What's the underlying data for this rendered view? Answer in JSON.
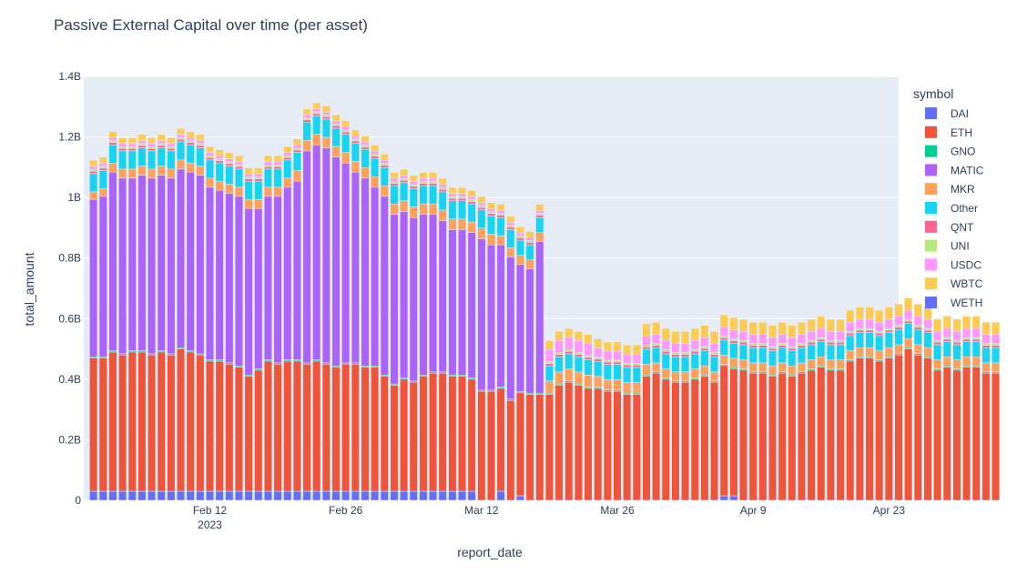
{
  "chart_data": {
    "type": "bar",
    "stacked": true,
    "title": "Passive External Capital over time (per asset)",
    "xlabel": "report_date",
    "ylabel": "total_amount",
    "ylim": [
      0,
      1400000000
    ],
    "yticks": [
      {
        "value": 0,
        "label": "0"
      },
      {
        "value": 200000000,
        "label": "0.2B"
      },
      {
        "value": 400000000,
        "label": "0.4B"
      },
      {
        "value": 600000000,
        "label": "0.6B"
      },
      {
        "value": 800000000,
        "label": "0.8B"
      },
      {
        "value": 1000000000,
        "label": "1B"
      },
      {
        "value": 1200000000,
        "label": "1.2B"
      },
      {
        "value": 1400000000,
        "label": "1.4B"
      }
    ],
    "xticks": [
      {
        "date": "2023-02-12",
        "label": "Feb 12",
        "sublabel": "2023"
      },
      {
        "date": "2023-02-26",
        "label": "Feb 26"
      },
      {
        "date": "2023-03-12",
        "label": "Mar 12"
      },
      {
        "date": "2023-03-26",
        "label": "Mar 26"
      },
      {
        "date": "2023-04-09",
        "label": "Apr 9"
      },
      {
        "date": "2023-04-23",
        "label": "Apr 23"
      }
    ],
    "xrange": [
      "2023-01-30",
      "2023-04-24"
    ],
    "grid": true,
    "legend_title": "symbol",
    "legend_position": "right",
    "start_date": "2023-01-31",
    "series": [
      {
        "name": "DAI",
        "color": "#636efa",
        "values": [
          0.03,
          0.03,
          0.03,
          0.03,
          0.03,
          0.03,
          0.03,
          0.03,
          0.03,
          0.03,
          0.03,
          0.03,
          0.03,
          0.03,
          0.03,
          0.03,
          0.03,
          0.03,
          0.03,
          0.03,
          0.03,
          0.03,
          0.03,
          0.03,
          0.03,
          0.03,
          0.03,
          0.03,
          0.03,
          0.03,
          0.03,
          0.03,
          0.03,
          0.03,
          0.03,
          0.03,
          0.03,
          0.03,
          0.03,
          0.03,
          0,
          0,
          0.03,
          0.0,
          0.015,
          0,
          0,
          0,
          0,
          0,
          0,
          0,
          0,
          0,
          0,
          0,
          0,
          0,
          0,
          0,
          0,
          0,
          0,
          0,
          0,
          0.015,
          0.015,
          0,
          0,
          0,
          0,
          0,
          0,
          0,
          0,
          0,
          0,
          0,
          0,
          0,
          0,
          0,
          0,
          0,
          0,
          0,
          0,
          0,
          0,
          0,
          0,
          0,
          0,
          0
        ]
      },
      {
        "name": "ETH",
        "color": "#ef553b",
        "values": [
          0.44,
          0.44,
          0.46,
          0.45,
          0.46,
          0.46,
          0.45,
          0.46,
          0.45,
          0.47,
          0.46,
          0.45,
          0.43,
          0.43,
          0.42,
          0.41,
          0.38,
          0.4,
          0.43,
          0.42,
          0.43,
          0.43,
          0.42,
          0.43,
          0.42,
          0.41,
          0.42,
          0.42,
          0.41,
          0.41,
          0.38,
          0.35,
          0.37,
          0.36,
          0.38,
          0.39,
          0.39,
          0.38,
          0.38,
          0.37,
          0.36,
          0.36,
          0.34,
          0.33,
          0.34,
          0.35,
          0.35,
          0.35,
          0.38,
          0.39,
          0.38,
          0.37,
          0.37,
          0.36,
          0.36,
          0.35,
          0.35,
          0.41,
          0.42,
          0.4,
          0.39,
          0.39,
          0.4,
          0.41,
          0.39,
          0.43,
          0.42,
          0.43,
          0.42,
          0.42,
          0.41,
          0.42,
          0.41,
          0.42,
          0.43,
          0.44,
          0.43,
          0.43,
          0.46,
          0.47,
          0.47,
          0.46,
          0.47,
          0.48,
          0.5,
          0.48,
          0.47,
          0.43,
          0.44,
          0.43,
          0.44,
          0.44,
          0.42,
          0.42
        ]
      },
      {
        "name": "GNO",
        "color": "#00cc96",
        "values": [
          0.004,
          0.004,
          0.004,
          0.004,
          0.004,
          0.004,
          0.004,
          0.004,
          0.004,
          0.004,
          0.004,
          0.004,
          0.004,
          0.004,
          0.004,
          0.004,
          0.004,
          0.004,
          0.004,
          0.004,
          0.004,
          0.004,
          0.004,
          0.004,
          0.004,
          0.004,
          0.004,
          0.004,
          0.004,
          0.004,
          0.004,
          0.004,
          0.004,
          0.004,
          0.004,
          0.004,
          0.004,
          0.004,
          0.004,
          0.004,
          0.004,
          0.004,
          0.004,
          0.004,
          0.004,
          0.004,
          0.004,
          0.004,
          0.004,
          0.004,
          0.004,
          0.004,
          0.004,
          0.004,
          0.004,
          0.004,
          0.004,
          0.004,
          0.004,
          0.004,
          0.004,
          0.004,
          0.004,
          0.004,
          0.004,
          0.004,
          0.004,
          0.004,
          0.004,
          0.004,
          0.004,
          0.004,
          0.004,
          0.004,
          0.004,
          0.004,
          0.004,
          0.004,
          0.004,
          0.004,
          0.004,
          0.004,
          0.004,
          0.004,
          0.004,
          0.004,
          0.004,
          0.004,
          0.004,
          0.004,
          0.004,
          0.004,
          0.004,
          0.004
        ]
      },
      {
        "name": "MATIC",
        "color": "#ab63fa",
        "values": [
          0.52,
          0.53,
          0.59,
          0.58,
          0.57,
          0.58,
          0.58,
          0.58,
          0.58,
          0.59,
          0.59,
          0.59,
          0.57,
          0.56,
          0.56,
          0.56,
          0.55,
          0.53,
          0.54,
          0.55,
          0.57,
          0.59,
          0.7,
          0.71,
          0.71,
          0.69,
          0.66,
          0.63,
          0.62,
          0.59,
          0.59,
          0.56,
          0.55,
          0.54,
          0.53,
          0.52,
          0.5,
          0.48,
          0.48,
          0.48,
          0.5,
          0.48,
          0.47,
          0.47,
          0.42,
          0.41,
          0.5,
          0,
          0,
          0,
          0,
          0,
          0,
          0,
          0,
          0,
          0,
          0,
          0,
          0,
          0,
          0,
          0,
          0,
          0,
          0,
          0,
          0,
          0,
          0,
          0,
          0,
          0,
          0,
          0,
          0,
          0,
          0,
          0,
          0,
          0,
          0,
          0,
          0,
          0,
          0,
          0,
          0,
          0,
          0,
          0,
          0,
          0,
          0
        ]
      },
      {
        "name": "MKR",
        "color": "#ffa15a",
        "values": [
          0.025,
          0.025,
          0.03,
          0.03,
          0.03,
          0.03,
          0.03,
          0.03,
          0.03,
          0.03,
          0.03,
          0.03,
          0.03,
          0.03,
          0.03,
          0.03,
          0.03,
          0.03,
          0.03,
          0.03,
          0.03,
          0.035,
          0.035,
          0.035,
          0.035,
          0.035,
          0.035,
          0.035,
          0.035,
          0.035,
          0.035,
          0.035,
          0.035,
          0.035,
          0.035,
          0.035,
          0.035,
          0.035,
          0.035,
          0.035,
          0.035,
          0.035,
          0.03,
          0.03,
          0.03,
          0.03,
          0.03,
          0.04,
          0.04,
          0.04,
          0.04,
          0.04,
          0.035,
          0.035,
          0.035,
          0.035,
          0.035,
          0.035,
          0.03,
          0.03,
          0.03,
          0.03,
          0.03,
          0.03,
          0.03,
          0.03,
          0.03,
          0.03,
          0.03,
          0.03,
          0.03,
          0.03,
          0.03,
          0.03,
          0.03,
          0.03,
          0.03,
          0.03,
          0.03,
          0.03,
          0.03,
          0.03,
          0.03,
          0.03,
          0.03,
          0.03,
          0.03,
          0.03,
          0.03,
          0.03,
          0.03,
          0.03,
          0.03,
          0.03
        ]
      },
      {
        "name": "Other",
        "color": "#19d3f3",
        "values": [
          0.06,
          0.06,
          0.06,
          0.06,
          0.06,
          0.06,
          0.06,
          0.06,
          0.06,
          0.06,
          0.06,
          0.06,
          0.06,
          0.06,
          0.06,
          0.06,
          0.06,
          0.06,
          0.06,
          0.06,
          0.06,
          0.06,
          0.06,
          0.06,
          0.06,
          0.06,
          0.06,
          0.06,
          0.06,
          0.06,
          0.06,
          0.06,
          0.06,
          0.06,
          0.06,
          0.06,
          0.06,
          0.06,
          0.06,
          0.06,
          0.06,
          0.06,
          0.06,
          0.06,
          0.05,
          0.05,
          0.05,
          0.05,
          0.05,
          0.05,
          0.05,
          0.05,
          0.05,
          0.05,
          0.05,
          0.05,
          0.05,
          0.05,
          0.05,
          0.05,
          0.05,
          0.05,
          0.05,
          0.05,
          0.05,
          0.05,
          0.05,
          0.05,
          0.05,
          0.05,
          0.05,
          0.05,
          0.05,
          0.05,
          0.05,
          0.05,
          0.05,
          0.05,
          0.05,
          0.05,
          0.05,
          0.05,
          0.05,
          0.05,
          0.05,
          0.05,
          0.05,
          0.05,
          0.05,
          0.05,
          0.05,
          0.05,
          0.05,
          0.05
        ]
      },
      {
        "name": "QNT",
        "color": "#ff6692",
        "values": [
          0.008,
          0.008,
          0.008,
          0.008,
          0.008,
          0.008,
          0.008,
          0.008,
          0.008,
          0.008,
          0.008,
          0.008,
          0.008,
          0.008,
          0.008,
          0.008,
          0.008,
          0.008,
          0.008,
          0.008,
          0.008,
          0.008,
          0.008,
          0.008,
          0.008,
          0.008,
          0.008,
          0.008,
          0.008,
          0.008,
          0.008,
          0.008,
          0.008,
          0.008,
          0.008,
          0.008,
          0.008,
          0.008,
          0.008,
          0.008,
          0.008,
          0.008,
          0.008,
          0.008,
          0.008,
          0.008,
          0.008,
          0.008,
          0.008,
          0.008,
          0.008,
          0.008,
          0.008,
          0.008,
          0.008,
          0.008,
          0.008,
          0.008,
          0.008,
          0.008,
          0.008,
          0.008,
          0.008,
          0.008,
          0.008,
          0.008,
          0.008,
          0.008,
          0.008,
          0.008,
          0.008,
          0.008,
          0.008,
          0.008,
          0.008,
          0.008,
          0.008,
          0.008,
          0.008,
          0.008,
          0.008,
          0.008,
          0.008,
          0.008,
          0.008,
          0.008,
          0.008,
          0.008,
          0.008,
          0.008,
          0.008,
          0.008,
          0.008,
          0.008
        ]
      },
      {
        "name": "UNI",
        "color": "#b6e880",
        "values": [
          0.006,
          0.006,
          0.006,
          0.006,
          0.006,
          0.006,
          0.006,
          0.006,
          0.006,
          0.006,
          0.006,
          0.006,
          0.006,
          0.006,
          0.006,
          0.006,
          0.006,
          0.006,
          0.006,
          0.006,
          0.006,
          0.006,
          0.006,
          0.006,
          0.006,
          0.006,
          0.006,
          0.006,
          0.006,
          0.006,
          0.006,
          0.006,
          0.006,
          0.006,
          0.006,
          0.006,
          0.006,
          0.006,
          0.006,
          0.006,
          0.006,
          0.006,
          0.006,
          0.006,
          0.006,
          0.006,
          0.006,
          0.006,
          0.006,
          0.006,
          0.006,
          0.006,
          0.006,
          0.006,
          0.006,
          0.006,
          0.006,
          0.006,
          0.006,
          0.006,
          0.006,
          0.006,
          0.006,
          0.006,
          0.006,
          0.006,
          0.006,
          0.006,
          0.006,
          0.006,
          0.006,
          0.006,
          0.006,
          0.006,
          0.006,
          0.006,
          0.006,
          0.006,
          0.006,
          0.006,
          0.006,
          0.006,
          0.006,
          0.006,
          0.006,
          0.006,
          0.006,
          0.006,
          0.006,
          0.006,
          0.006,
          0.006,
          0.006,
          0.006
        ]
      },
      {
        "name": "USDC",
        "color": "#ff97ff",
        "values": [
          0.01,
          0.01,
          0.01,
          0.01,
          0.01,
          0.01,
          0.01,
          0.01,
          0.01,
          0.01,
          0.01,
          0.01,
          0.01,
          0.01,
          0.01,
          0.01,
          0.01,
          0.01,
          0.01,
          0.01,
          0.01,
          0.01,
          0.01,
          0.01,
          0.01,
          0.01,
          0.01,
          0.01,
          0.01,
          0.01,
          0.01,
          0.01,
          0.01,
          0.01,
          0.01,
          0.01,
          0.01,
          0.01,
          0.01,
          0.01,
          0.01,
          0.01,
          0.01,
          0.01,
          0.01,
          0.01,
          0.01,
          0.04,
          0.04,
          0.04,
          0.04,
          0.04,
          0.03,
          0.03,
          0.03,
          0.03,
          0.03,
          0.03,
          0.03,
          0.03,
          0.03,
          0.03,
          0.03,
          0.03,
          0.03,
          0.03,
          0.03,
          0.03,
          0.03,
          0.03,
          0.03,
          0.03,
          0.03,
          0.03,
          0.03,
          0.03,
          0.03,
          0.03,
          0.03,
          0.03,
          0.03,
          0.03,
          0.03,
          0.03,
          0.03,
          0.03,
          0.03,
          0.03,
          0.03,
          0.03,
          0.03,
          0.03,
          0.03,
          0.03
        ]
      },
      {
        "name": "WBTC",
        "color": "#fecb52",
        "values": [
          0.02,
          0.02,
          0.02,
          0.02,
          0.02,
          0.02,
          0.02,
          0.02,
          0.02,
          0.02,
          0.02,
          0.02,
          0.02,
          0.02,
          0.02,
          0.02,
          0.02,
          0.02,
          0.02,
          0.02,
          0.02,
          0.02,
          0.02,
          0.02,
          0.02,
          0.02,
          0.02,
          0.02,
          0.02,
          0.02,
          0.02,
          0.02,
          0.02,
          0.02,
          0.02,
          0.02,
          0.02,
          0.02,
          0.02,
          0.02,
          0.02,
          0.02,
          0.02,
          0.02,
          0.02,
          0.02,
          0.02,
          0.03,
          0.03,
          0.03,
          0.03,
          0.03,
          0.03,
          0.03,
          0.03,
          0.03,
          0.03,
          0.04,
          0.04,
          0.04,
          0.04,
          0.04,
          0.04,
          0.04,
          0.04,
          0.04,
          0.04,
          0.04,
          0.04,
          0.04,
          0.04,
          0.04,
          0.04,
          0.04,
          0.04,
          0.04,
          0.04,
          0.04,
          0.04,
          0.04,
          0.04,
          0.04,
          0.04,
          0.04,
          0.04,
          0.04,
          0.04,
          0.04,
          0.04,
          0.04,
          0.04,
          0.04,
          0.04,
          0.04
        ]
      },
      {
        "name": "WETH",
        "color": "#636efa",
        "values": [
          0,
          0,
          0,
          0,
          0,
          0,
          0,
          0,
          0,
          0,
          0,
          0,
          0,
          0,
          0,
          0,
          0,
          0,
          0,
          0,
          0,
          0,
          0,
          0,
          0,
          0,
          0,
          0,
          0,
          0,
          0,
          0,
          0,
          0,
          0,
          0,
          0,
          0,
          0,
          0,
          0,
          0,
          0,
          0,
          0,
          0,
          0,
          0,
          0,
          0,
          0,
          0,
          0,
          0,
          0,
          0,
          0,
          0,
          0,
          0,
          0,
          0,
          0,
          0,
          0,
          0,
          0,
          0,
          0,
          0,
          0,
          0,
          0,
          0,
          0,
          0,
          0,
          0,
          0,
          0,
          0,
          0,
          0,
          0,
          0,
          0,
          0,
          0,
          0,
          0,
          0,
          0,
          0,
          0
        ]
      }
    ]
  }
}
